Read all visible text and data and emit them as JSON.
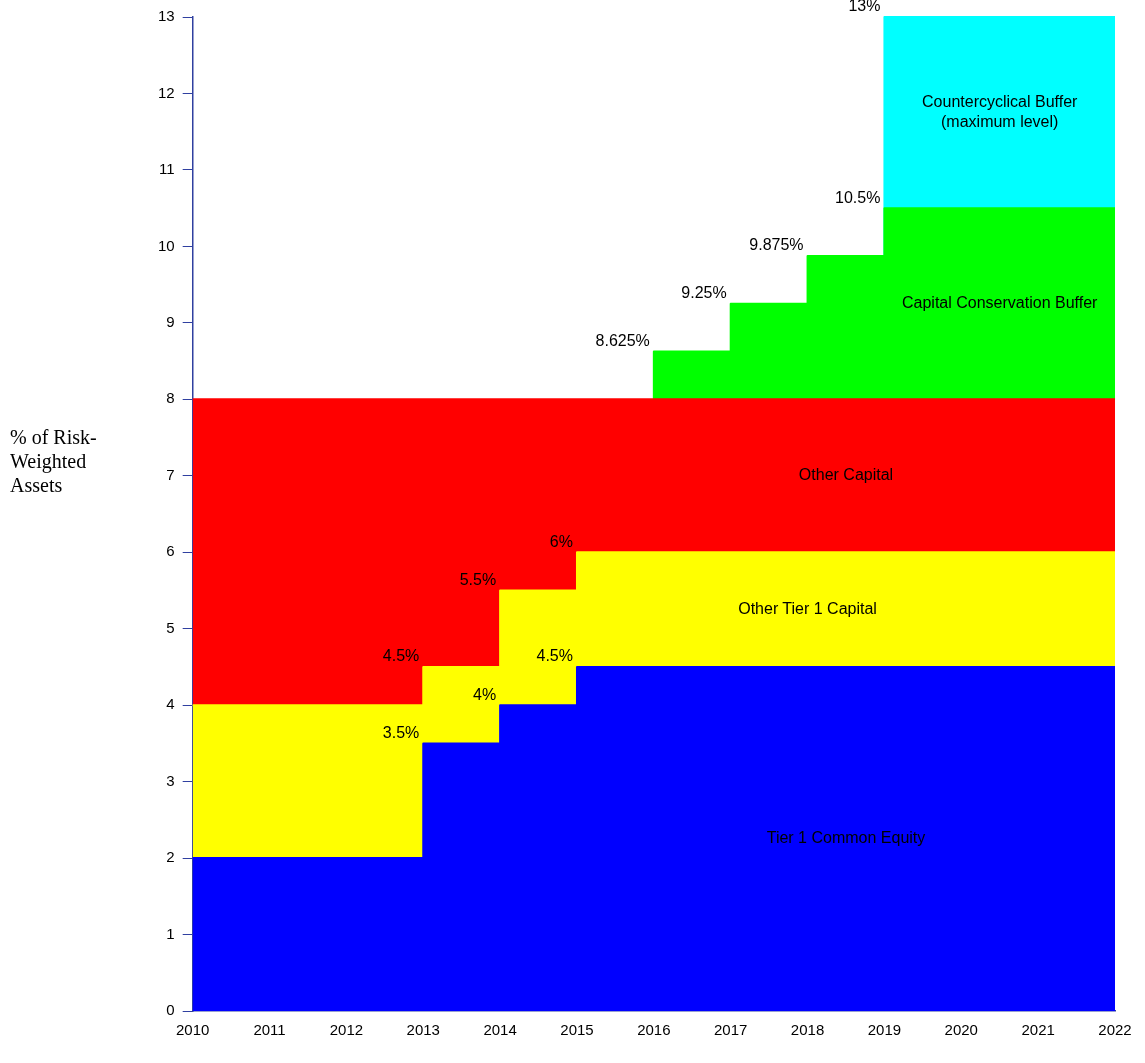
{
  "chart_data": {
    "type": "area",
    "stacked": true,
    "ylabel": "% of Risk-Weighted Assets",
    "x": [
      2010,
      2013,
      2013,
      2014,
      2014,
      2015,
      2015,
      2016,
      2016,
      2017,
      2017,
      2018,
      2018,
      2019,
      2019,
      2022
    ],
    "series": [
      {
        "name": "Tier 1 Common Equity",
        "color": "#0000ff",
        "values": [
          2,
          2,
          3.5,
          3.5,
          4,
          4,
          4.5,
          4.5,
          4.5,
          4.5,
          4.5,
          4.5,
          4.5,
          4.5,
          4.5,
          4.5
        ]
      },
      {
        "name": "Other Tier 1 Capital",
        "color": "#ffff00",
        "values": [
          2,
          2,
          1,
          1,
          1.5,
          1.5,
          1.5,
          1.5,
          1.5,
          1.5,
          1.5,
          1.5,
          1.5,
          1.5,
          1.5,
          1.5
        ]
      },
      {
        "name": "Other Capital",
        "color": "#ff0000",
        "values": [
          4,
          4,
          3.5,
          3.5,
          2.5,
          2.5,
          2,
          2,
          2,
          2,
          2,
          2,
          2,
          2,
          2,
          2
        ]
      },
      {
        "name": "Capital Conservation Buffer",
        "color": "#00ff00",
        "values": [
          null,
          null,
          null,
          null,
          null,
          null,
          null,
          0,
          0.625,
          0.625,
          1.25,
          1.25,
          1.875,
          1.875,
          2.5,
          2.5
        ]
      },
      {
        "name": "Countercyclical Buffer (maximum level)",
        "color": "#00ffff",
        "values": [
          null,
          null,
          null,
          null,
          null,
          null,
          null,
          null,
          null,
          null,
          null,
          null,
          null,
          0,
          2.5,
          2.5
        ]
      }
    ],
    "xlim": [
      2010,
      2022
    ],
    "xticks": [
      2010,
      2011,
      2012,
      2013,
      2014,
      2015,
      2016,
      2017,
      2018,
      2019,
      2020,
      2021,
      2022
    ],
    "ylim": [
      0,
      13
    ],
    "yticks": [
      0,
      1,
      2,
      3,
      4,
      5,
      6,
      7,
      8,
      9,
      10,
      11,
      12,
      13
    ],
    "grid": false,
    "legend": false,
    "annotations": [
      {
        "text": "13%",
        "x": 2019,
        "y": 13
      },
      {
        "text": "10.5%",
        "x": 2019,
        "y": 10.5
      },
      {
        "text": "9.875%",
        "x": 2018,
        "y": 9.875
      },
      {
        "text": "9.25%",
        "x": 2017,
        "y": 9.25
      },
      {
        "text": "8.625%",
        "x": 2016,
        "y": 8.625
      },
      {
        "text": "6%",
        "x": 2015,
        "y": 6
      },
      {
        "text": "5.5%",
        "x": 2014,
        "y": 5.5
      },
      {
        "text": "4.5%",
        "x": 2013,
        "y": 4.5
      },
      {
        "text": "4.5%",
        "x": 2015,
        "y": 4.5
      },
      {
        "text": "4%",
        "x": 2014,
        "y": 4
      },
      {
        "text": "3.5%",
        "x": 2013,
        "y": 3.5
      }
    ]
  }
}
